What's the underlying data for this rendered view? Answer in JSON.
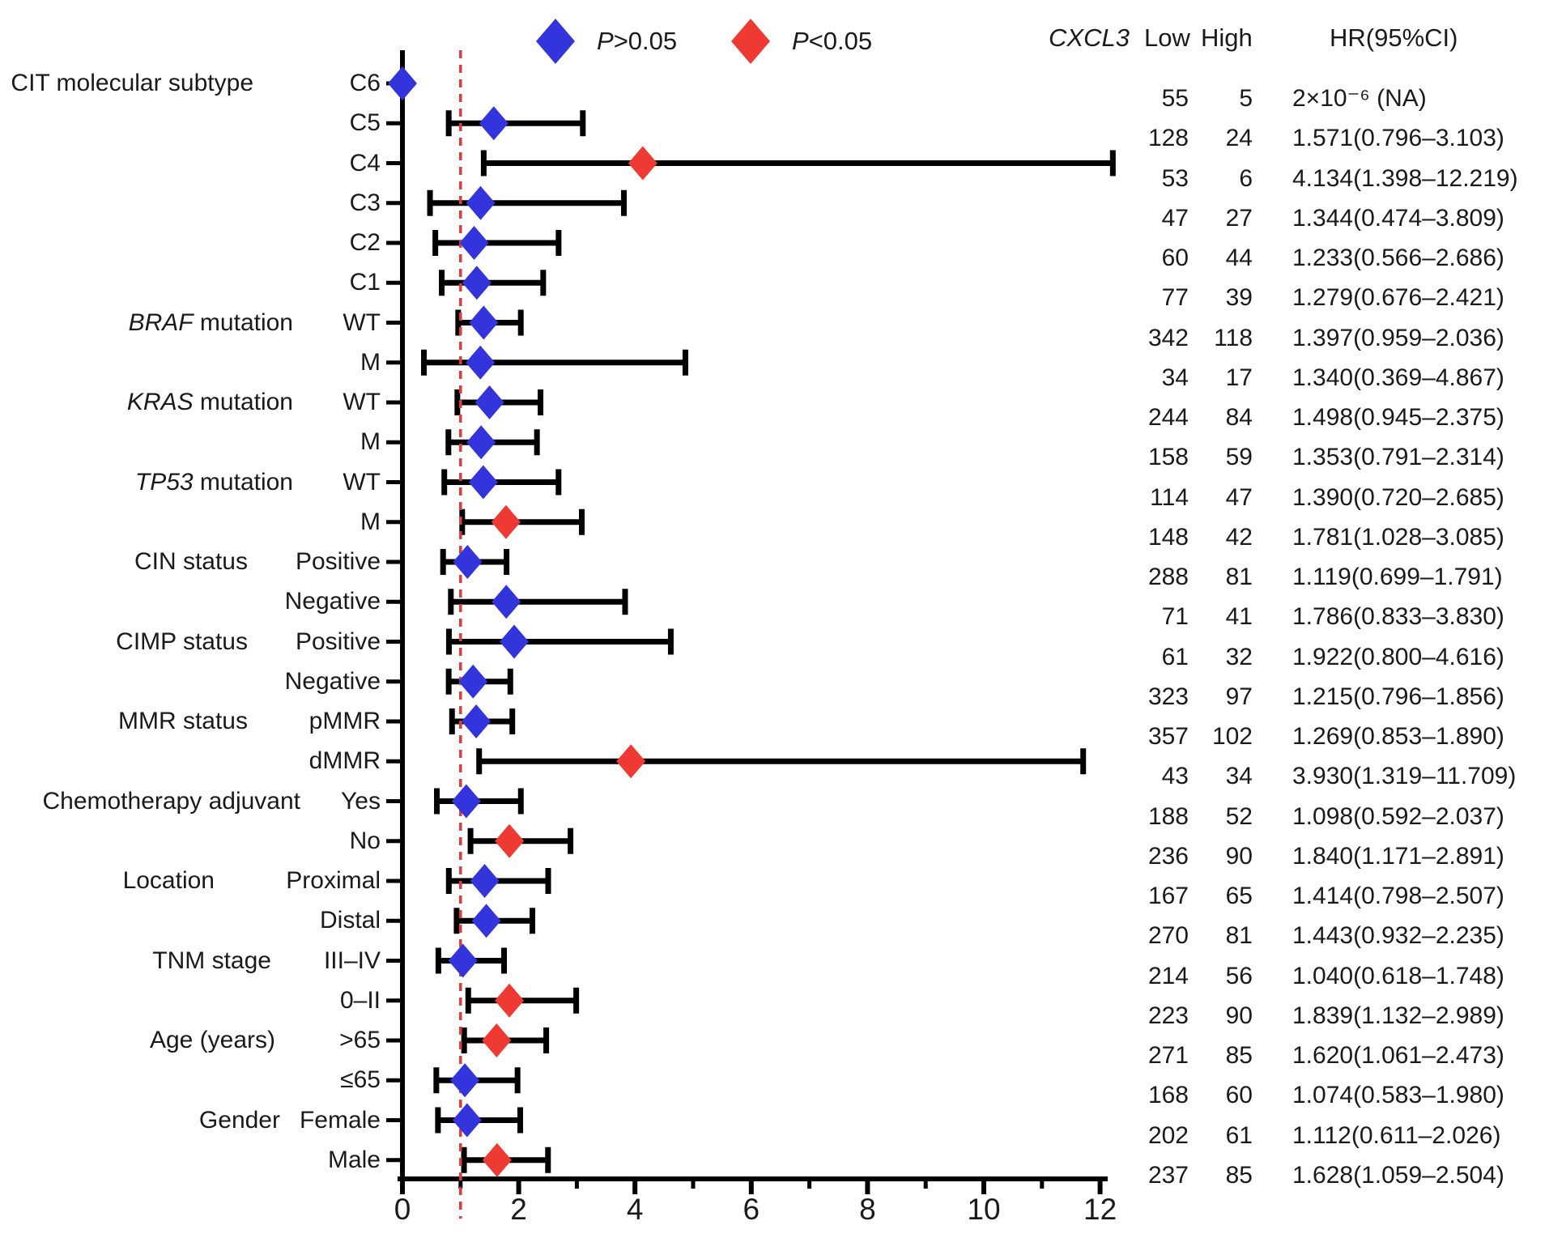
{
  "legend": {
    "nonsig": {
      "label_italic": "P",
      "label_rest": ">0.05"
    },
    "sig": {
      "label_italic": "P",
      "label_rest": "<0.05"
    }
  },
  "table_header": {
    "gene_italic": "CXCL3",
    "col_low": "Low",
    "col_high": "High",
    "col_hr": "HR(95%CI)"
  },
  "colors": {
    "nonsig_diamond": "#3434dc",
    "sig_diamond": "#ee3a33",
    "ref_line": "#dd3c3c",
    "axis_line": "#000000",
    "text": "#1a1a1a"
  },
  "chart_data": {
    "type": "forest",
    "title": "",
    "xlabel": "",
    "x_axis": {
      "min": 0,
      "max": 12,
      "major_ticks": [
        0,
        2,
        4,
        6,
        8,
        10,
        12
      ],
      "minor_ticks": [
        1,
        3,
        5,
        7,
        9,
        11
      ],
      "reference_line": 1
    },
    "legend_position": "top",
    "rows": [
      {
        "group_italic": "",
        "group_rest": "CIT molecular subtype",
        "label": "C6",
        "low": "55",
        "high": "5",
        "hr": 2e-06,
        "ci_low": null,
        "ci_high": null,
        "hr_text": "2×10⁻⁶ (NA)",
        "significant": false
      },
      {
        "group_italic": "",
        "group_rest": "",
        "label": "C5",
        "low": "128",
        "high": "24",
        "hr": 1.571,
        "ci_low": 0.796,
        "ci_high": 3.103,
        "hr_text": "1.571(0.796–3.103)",
        "significant": false
      },
      {
        "group_italic": "",
        "group_rest": "",
        "label": "C4",
        "low": "53",
        "high": "6",
        "hr": 4.134,
        "ci_low": 1.398,
        "ci_high": 12.219,
        "hr_text": "4.134(1.398–12.219)",
        "significant": true
      },
      {
        "group_italic": "",
        "group_rest": "",
        "label": "C3",
        "low": "47",
        "high": "27",
        "hr": 1.344,
        "ci_low": 0.474,
        "ci_high": 3.809,
        "hr_text": "1.344(0.474–3.809)",
        "significant": false
      },
      {
        "group_italic": "",
        "group_rest": "",
        "label": "C2",
        "low": "60",
        "high": "44",
        "hr": 1.233,
        "ci_low": 0.566,
        "ci_high": 2.686,
        "hr_text": "1.233(0.566–2.686)",
        "significant": false
      },
      {
        "group_italic": "",
        "group_rest": "",
        "label": "C1",
        "low": "77",
        "high": "39",
        "hr": 1.279,
        "ci_low": 0.676,
        "ci_high": 2.421,
        "hr_text": "1.279(0.676–2.421)",
        "significant": false
      },
      {
        "group_italic": "BRAF",
        "group_rest": " mutation",
        "label": "WT",
        "low": "342",
        "high": "118",
        "hr": 1.397,
        "ci_low": 0.959,
        "ci_high": 2.036,
        "hr_text": "1.397(0.959–2.036)",
        "significant": false
      },
      {
        "group_italic": "",
        "group_rest": "",
        "label": "M",
        "low": "34",
        "high": "17",
        "hr": 1.34,
        "ci_low": 0.369,
        "ci_high": 4.867,
        "hr_text": "1.340(0.369–4.867)",
        "significant": false
      },
      {
        "group_italic": "KRAS",
        "group_rest": " mutation",
        "label": "WT",
        "low": "244",
        "high": "84",
        "hr": 1.498,
        "ci_low": 0.945,
        "ci_high": 2.375,
        "hr_text": "1.498(0.945–2.375)",
        "significant": false
      },
      {
        "group_italic": "",
        "group_rest": "",
        "label": "M",
        "low": "158",
        "high": "59",
        "hr": 1.353,
        "ci_low": 0.791,
        "ci_high": 2.314,
        "hr_text": "1.353(0.791–2.314)",
        "significant": false
      },
      {
        "group_italic": "TP53",
        "group_rest": " mutation",
        "label": "WT",
        "low": "114",
        "high": "47",
        "hr": 1.39,
        "ci_low": 0.72,
        "ci_high": 2.685,
        "hr_text": "1.390(0.720–2.685)",
        "significant": false
      },
      {
        "group_italic": "",
        "group_rest": "",
        "label": "M",
        "low": "148",
        "high": "42",
        "hr": 1.781,
        "ci_low": 1.028,
        "ci_high": 3.085,
        "hr_text": "1.781(1.028–3.085)",
        "significant": true
      },
      {
        "group_italic": "",
        "group_rest": "CIN status",
        "label": "Positive",
        "low": "288",
        "high": "81",
        "hr": 1.119,
        "ci_low": 0.699,
        "ci_high": 1.791,
        "hr_text": "1.119(0.699–1.791)",
        "significant": false
      },
      {
        "group_italic": "",
        "group_rest": "",
        "label": "Negative",
        "low": "71",
        "high": "41",
        "hr": 1.786,
        "ci_low": 0.833,
        "ci_high": 3.83,
        "hr_text": "1.786(0.833–3.830)",
        "significant": false
      },
      {
        "group_italic": "",
        "group_rest": "CIMP status",
        "label": "Positive",
        "low": "61",
        "high": "32",
        "hr": 1.922,
        "ci_low": 0.8,
        "ci_high": 4.616,
        "hr_text": "1.922(0.800–4.616)",
        "significant": false
      },
      {
        "group_italic": "",
        "group_rest": "",
        "label": "Negative",
        "low": "323",
        "high": "97",
        "hr": 1.215,
        "ci_low": 0.796,
        "ci_high": 1.856,
        "hr_text": "1.215(0.796–1.856)",
        "significant": false
      },
      {
        "group_italic": "",
        "group_rest": "MMR status",
        "label": "pMMR",
        "low": "357",
        "high": "102",
        "hr": 1.269,
        "ci_low": 0.853,
        "ci_high": 1.89,
        "hr_text": "1.269(0.853–1.890)",
        "significant": false
      },
      {
        "group_italic": "",
        "group_rest": "",
        "label": "dMMR",
        "low": "43",
        "high": "34",
        "hr": 3.93,
        "ci_low": 1.319,
        "ci_high": 11.709,
        "hr_text": "3.930(1.319–11.709)",
        "significant": true
      },
      {
        "group_italic": "",
        "group_rest": "Chemotherapy adjuvant",
        "label": "Yes",
        "low": "188",
        "high": "52",
        "hr": 1.098,
        "ci_low": 0.592,
        "ci_high": 2.037,
        "hr_text": "1.098(0.592–2.037)",
        "significant": false
      },
      {
        "group_italic": "",
        "group_rest": "",
        "label": "No",
        "low": "236",
        "high": "90",
        "hr": 1.84,
        "ci_low": 1.171,
        "ci_high": 2.891,
        "hr_text": "1.840(1.171–2.891)",
        "significant": true
      },
      {
        "group_italic": "",
        "group_rest": "Location",
        "label": "Proximal",
        "low": "167",
        "high": "65",
        "hr": 1.414,
        "ci_low": 0.798,
        "ci_high": 2.507,
        "hr_text": "1.414(0.798–2.507)",
        "significant": false
      },
      {
        "group_italic": "",
        "group_rest": "",
        "label": "Distal",
        "low": "270",
        "high": "81",
        "hr": 1.443,
        "ci_low": 0.932,
        "ci_high": 2.235,
        "hr_text": "1.443(0.932–2.235)",
        "significant": false
      },
      {
        "group_italic": "",
        "group_rest": "TNM stage",
        "label": "III–IV",
        "low": "214",
        "high": "56",
        "hr": 1.04,
        "ci_low": 0.618,
        "ci_high": 1.748,
        "hr_text": "1.040(0.618–1.748)",
        "significant": false
      },
      {
        "group_italic": "",
        "group_rest": "",
        "label": "0–II",
        "low": "223",
        "high": "90",
        "hr": 1.839,
        "ci_low": 1.132,
        "ci_high": 2.989,
        "hr_text": "1.839(1.132–2.989)",
        "significant": true
      },
      {
        "group_italic": "",
        "group_rest": "Age (years)",
        "label": ">65",
        "low": "271",
        "high": "85",
        "hr": 1.62,
        "ci_low": 1.061,
        "ci_high": 2.473,
        "hr_text": "1.620(1.061–2.473)",
        "significant": true
      },
      {
        "group_italic": "",
        "group_rest": "",
        "label": "≤65",
        "low": "168",
        "high": "60",
        "hr": 1.074,
        "ci_low": 0.583,
        "ci_high": 1.98,
        "hr_text": "1.074(0.583–1.980)",
        "significant": false
      },
      {
        "group_italic": "",
        "group_rest": "Gender",
        "label": "Female",
        "low": "202",
        "high": "61",
        "hr": 1.112,
        "ci_low": 0.611,
        "ci_high": 2.026,
        "hr_text": "1.112(0.611–2.026)",
        "significant": false
      },
      {
        "group_italic": "",
        "group_rest": "",
        "label": "Male",
        "low": "237",
        "high": "85",
        "hr": 1.628,
        "ci_low": 1.059,
        "ci_high": 2.504,
        "hr_text": "1.628(1.059–2.504)",
        "significant": true
      }
    ]
  }
}
